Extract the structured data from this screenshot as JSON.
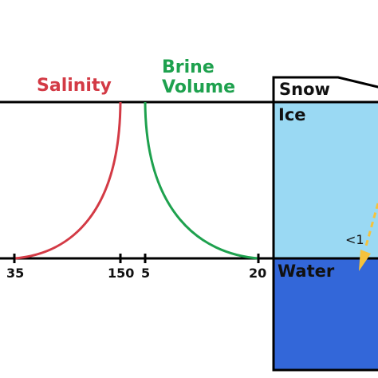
{
  "labels": {
    "salinity": "Salinity",
    "brine_line1": "Brine",
    "brine_line2": "Volume",
    "snow": "Snow",
    "ice": "Ice",
    "water": "Water",
    "transmission": "<1"
  },
  "ticks": {
    "salinity_left": "35",
    "salinity_right": "150",
    "brine_left": "5",
    "brine_right": "20"
  },
  "colors": {
    "salinity": "#d33a45",
    "brine_volume": "#1ea14e",
    "ice": "#9ad9f3",
    "water": "#3367d9",
    "arrow": "#f5c23c",
    "line": "#000000"
  }
}
